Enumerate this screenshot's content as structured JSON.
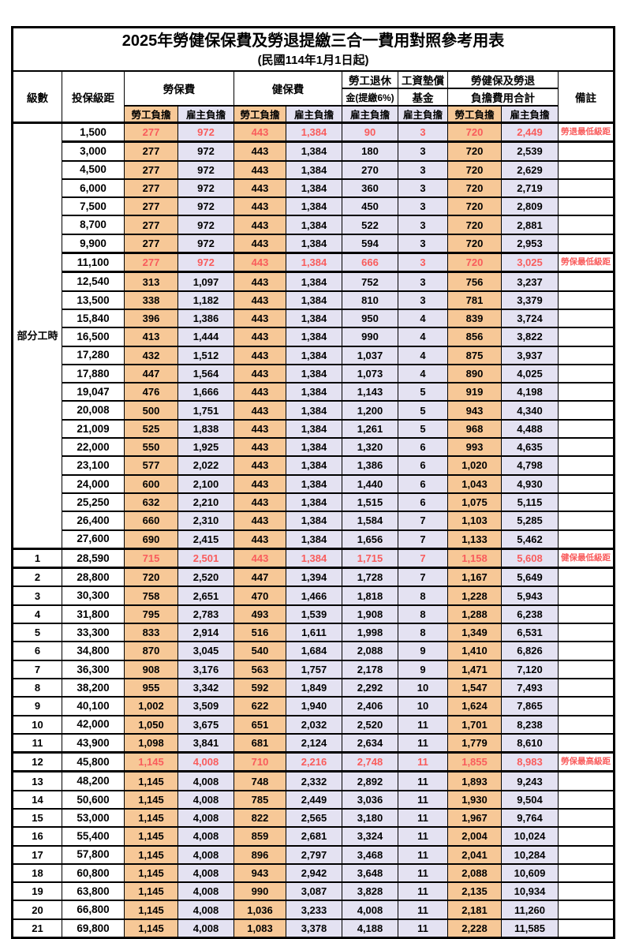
{
  "page": {
    "title": "2025年勞健保保費及勞退提繳三合一費用對照參考用表",
    "subtitle": "(民國114年1月1日起)"
  },
  "table": {
    "colors": {
      "employee_bg": "#F7C897",
      "employer_bg": "#E4E2F2",
      "highlight_text": "#F95C5C"
    },
    "headers": {
      "level": "級數",
      "bracket": "投保級距",
      "labor": "勞保費",
      "health": "健保費",
      "pension_line1": "勞工退休",
      "pension_line2": "金(提繳6%)",
      "wage_fund_line1": "工資墊償",
      "wage_fund_line2": "基金",
      "total_line1": "勞健保及勞退",
      "total_line2": "負擔費用合計",
      "remark": "備註",
      "employee": "勞工負擔",
      "employer": "雇主負擔"
    },
    "part_time_label": "部分工時",
    "rows": [
      {
        "level": "",
        "bracket": "1,500",
        "values": [
          "277",
          "972",
          "443",
          "1,384",
          "90",
          "3",
          "720",
          "2,449"
        ],
        "remark": "勞退最低級距",
        "highlight": true
      },
      {
        "level": "",
        "bracket": "3,000",
        "values": [
          "277",
          "972",
          "443",
          "1,384",
          "180",
          "3",
          "720",
          "2,539"
        ],
        "remark": "",
        "highlight": false
      },
      {
        "level": "",
        "bracket": "4,500",
        "values": [
          "277",
          "972",
          "443",
          "1,384",
          "270",
          "3",
          "720",
          "2,629"
        ],
        "remark": "",
        "highlight": false
      },
      {
        "level": "",
        "bracket": "6,000",
        "values": [
          "277",
          "972",
          "443",
          "1,384",
          "360",
          "3",
          "720",
          "2,719"
        ],
        "remark": "",
        "highlight": false
      },
      {
        "level": "",
        "bracket": "7,500",
        "values": [
          "277",
          "972",
          "443",
          "1,384",
          "450",
          "3",
          "720",
          "2,809"
        ],
        "remark": "",
        "highlight": false
      },
      {
        "level": "",
        "bracket": "8,700",
        "values": [
          "277",
          "972",
          "443",
          "1,384",
          "522",
          "3",
          "720",
          "2,881"
        ],
        "remark": "",
        "highlight": false
      },
      {
        "level": "",
        "bracket": "9,900",
        "values": [
          "277",
          "972",
          "443",
          "1,384",
          "594",
          "3",
          "720",
          "2,953"
        ],
        "remark": "",
        "highlight": false
      },
      {
        "level": "",
        "bracket": "11,100",
        "values": [
          "277",
          "972",
          "443",
          "1,384",
          "666",
          "3",
          "720",
          "3,025"
        ],
        "remark": "勞保最低級距",
        "highlight": true
      },
      {
        "level": "",
        "bracket": "12,540",
        "values": [
          "313",
          "1,097",
          "443",
          "1,384",
          "752",
          "3",
          "756",
          "3,237"
        ],
        "remark": "",
        "highlight": false
      },
      {
        "level": "",
        "bracket": "13,500",
        "values": [
          "338",
          "1,182",
          "443",
          "1,384",
          "810",
          "3",
          "781",
          "3,379"
        ],
        "remark": "",
        "highlight": false
      },
      {
        "level": "",
        "bracket": "15,840",
        "values": [
          "396",
          "1,386",
          "443",
          "1,384",
          "950",
          "4",
          "839",
          "3,724"
        ],
        "remark": "",
        "highlight": false
      },
      {
        "level": "",
        "bracket": "16,500",
        "values": [
          "413",
          "1,444",
          "443",
          "1,384",
          "990",
          "4",
          "856",
          "3,822"
        ],
        "remark": "",
        "highlight": false
      },
      {
        "level": "",
        "bracket": "17,280",
        "values": [
          "432",
          "1,512",
          "443",
          "1,384",
          "1,037",
          "4",
          "875",
          "3,937"
        ],
        "remark": "",
        "highlight": false
      },
      {
        "level": "",
        "bracket": "17,880",
        "values": [
          "447",
          "1,564",
          "443",
          "1,384",
          "1,073",
          "4",
          "890",
          "4,025"
        ],
        "remark": "",
        "highlight": false
      },
      {
        "level": "",
        "bracket": "19,047",
        "values": [
          "476",
          "1,666",
          "443",
          "1,384",
          "1,143",
          "5",
          "919",
          "4,198"
        ],
        "remark": "",
        "highlight": false
      },
      {
        "level": "",
        "bracket": "20,008",
        "values": [
          "500",
          "1,751",
          "443",
          "1,384",
          "1,200",
          "5",
          "943",
          "4,340"
        ],
        "remark": "",
        "highlight": false
      },
      {
        "level": "",
        "bracket": "21,009",
        "values": [
          "525",
          "1,838",
          "443",
          "1,384",
          "1,261",
          "5",
          "968",
          "4,488"
        ],
        "remark": "",
        "highlight": false
      },
      {
        "level": "",
        "bracket": "22,000",
        "values": [
          "550",
          "1,925",
          "443",
          "1,384",
          "1,320",
          "6",
          "993",
          "4,635"
        ],
        "remark": "",
        "highlight": false
      },
      {
        "level": "",
        "bracket": "23,100",
        "values": [
          "577",
          "2,022",
          "443",
          "1,384",
          "1,386",
          "6",
          "1,020",
          "4,798"
        ],
        "remark": "",
        "highlight": false
      },
      {
        "level": "",
        "bracket": "24,000",
        "values": [
          "600",
          "2,100",
          "443",
          "1,384",
          "1,440",
          "6",
          "1,043",
          "4,930"
        ],
        "remark": "",
        "highlight": false
      },
      {
        "level": "",
        "bracket": "25,250",
        "values": [
          "632",
          "2,210",
          "443",
          "1,384",
          "1,515",
          "6",
          "1,075",
          "5,115"
        ],
        "remark": "",
        "highlight": false
      },
      {
        "level": "",
        "bracket": "26,400",
        "values": [
          "660",
          "2,310",
          "443",
          "1,384",
          "1,584",
          "7",
          "1,103",
          "5,285"
        ],
        "remark": "",
        "highlight": false
      },
      {
        "level": "",
        "bracket": "27,600",
        "values": [
          "690",
          "2,415",
          "443",
          "1,384",
          "1,656",
          "7",
          "1,133",
          "5,462"
        ],
        "remark": "",
        "highlight": false
      },
      {
        "level": "1",
        "bracket": "28,590",
        "values": [
          "715",
          "2,501",
          "443",
          "1,384",
          "1,715",
          "7",
          "1,158",
          "5,608"
        ],
        "remark": "健保最低級距",
        "highlight": true
      },
      {
        "level": "2",
        "bracket": "28,800",
        "values": [
          "720",
          "2,520",
          "447",
          "1,394",
          "1,728",
          "7",
          "1,167",
          "5,649"
        ],
        "remark": "",
        "highlight": false
      },
      {
        "level": "3",
        "bracket": "30,300",
        "values": [
          "758",
          "2,651",
          "470",
          "1,466",
          "1,818",
          "8",
          "1,228",
          "5,943"
        ],
        "remark": "",
        "highlight": false
      },
      {
        "level": "4",
        "bracket": "31,800",
        "values": [
          "795",
          "2,783",
          "493",
          "1,539",
          "1,908",
          "8",
          "1,288",
          "6,238"
        ],
        "remark": "",
        "highlight": false
      },
      {
        "level": "5",
        "bracket": "33,300",
        "values": [
          "833",
          "2,914",
          "516",
          "1,611",
          "1,998",
          "8",
          "1,349",
          "6,531"
        ],
        "remark": "",
        "highlight": false
      },
      {
        "level": "6",
        "bracket": "34,800",
        "values": [
          "870",
          "3,045",
          "540",
          "1,684",
          "2,088",
          "9",
          "1,410",
          "6,826"
        ],
        "remark": "",
        "highlight": false
      },
      {
        "level": "7",
        "bracket": "36,300",
        "values": [
          "908",
          "3,176",
          "563",
          "1,757",
          "2,178",
          "9",
          "1,471",
          "7,120"
        ],
        "remark": "",
        "highlight": false
      },
      {
        "level": "8",
        "bracket": "38,200",
        "values": [
          "955",
          "3,342",
          "592",
          "1,849",
          "2,292",
          "10",
          "1,547",
          "7,493"
        ],
        "remark": "",
        "highlight": false
      },
      {
        "level": "9",
        "bracket": "40,100",
        "values": [
          "1,002",
          "3,509",
          "622",
          "1,940",
          "2,406",
          "10",
          "1,624",
          "7,865"
        ],
        "remark": "",
        "highlight": false
      },
      {
        "level": "10",
        "bracket": "42,000",
        "values": [
          "1,050",
          "3,675",
          "651",
          "2,032",
          "2,520",
          "11",
          "1,701",
          "8,238"
        ],
        "remark": "",
        "highlight": false
      },
      {
        "level": "11",
        "bracket": "43,900",
        "values": [
          "1,098",
          "3,841",
          "681",
          "2,124",
          "2,634",
          "11",
          "1,779",
          "8,610"
        ],
        "remark": "",
        "highlight": false
      },
      {
        "level": "12",
        "bracket": "45,800",
        "values": [
          "1,145",
          "4,008",
          "710",
          "2,216",
          "2,748",
          "11",
          "1,855",
          "8,983"
        ],
        "remark": "勞保最高級距",
        "highlight": true
      },
      {
        "level": "13",
        "bracket": "48,200",
        "values": [
          "1,145",
          "4,008",
          "748",
          "2,332",
          "2,892",
          "11",
          "1,893",
          "9,243"
        ],
        "remark": "",
        "highlight": false
      },
      {
        "level": "14",
        "bracket": "50,600",
        "values": [
          "1,145",
          "4,008",
          "785",
          "2,449",
          "3,036",
          "11",
          "1,930",
          "9,504"
        ],
        "remark": "",
        "highlight": false
      },
      {
        "level": "15",
        "bracket": "53,000",
        "values": [
          "1,145",
          "4,008",
          "822",
          "2,565",
          "3,180",
          "11",
          "1,967",
          "9,764"
        ],
        "remark": "",
        "highlight": false
      },
      {
        "level": "16",
        "bracket": "55,400",
        "values": [
          "1,145",
          "4,008",
          "859",
          "2,681",
          "3,324",
          "11",
          "2,004",
          "10,024"
        ],
        "remark": "",
        "highlight": false
      },
      {
        "level": "17",
        "bracket": "57,800",
        "values": [
          "1,145",
          "4,008",
          "896",
          "2,797",
          "3,468",
          "11",
          "2,041",
          "10,284"
        ],
        "remark": "",
        "highlight": false
      },
      {
        "level": "18",
        "bracket": "60,800",
        "values": [
          "1,145",
          "4,008",
          "943",
          "2,942",
          "3,648",
          "11",
          "2,088",
          "10,609"
        ],
        "remark": "",
        "highlight": false
      },
      {
        "level": "19",
        "bracket": "63,800",
        "values": [
          "1,145",
          "4,008",
          "990",
          "3,087",
          "3,828",
          "11",
          "2,135",
          "10,934"
        ],
        "remark": "",
        "highlight": false
      },
      {
        "level": "20",
        "bracket": "66,800",
        "values": [
          "1,145",
          "4,008",
          "1,036",
          "3,233",
          "4,008",
          "11",
          "2,181",
          "11,260"
        ],
        "remark": "",
        "highlight": false
      },
      {
        "level": "21",
        "bracket": "69,800",
        "values": [
          "1,145",
          "4,008",
          "1,083",
          "3,378",
          "4,188",
          "11",
          "2,228",
          "11,585"
        ],
        "remark": "",
        "highlight": false
      }
    ]
  }
}
